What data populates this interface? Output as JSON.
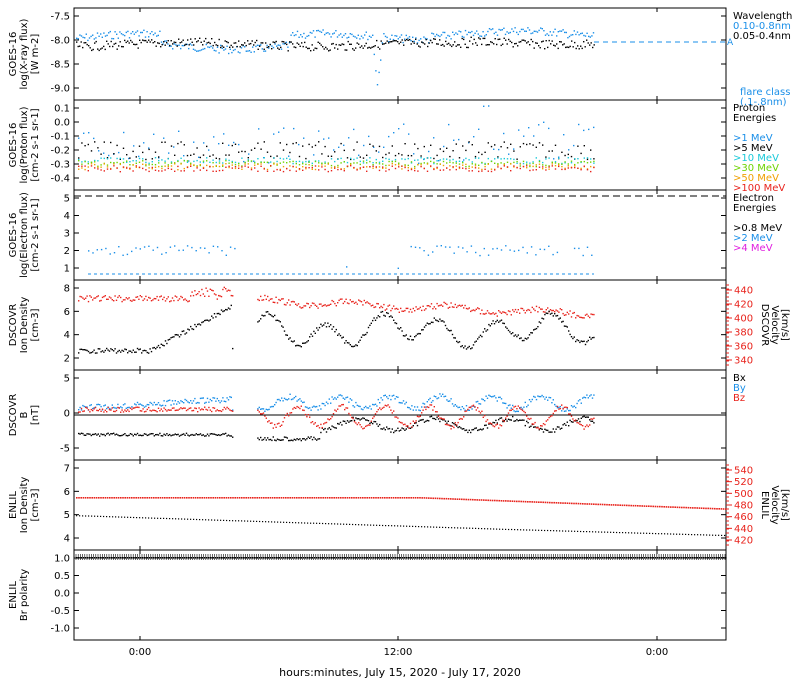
{
  "chart_data": {
    "type": "scatter",
    "xlabel": "hours:minutes, July 15, 2020 - July 17, 2020",
    "x_ticks": [
      "0:00",
      "12:00",
      "0:00"
    ],
    "panels": [
      {
        "id": "xray",
        "ylabel": [
          "GOES-16",
          "log(X-ray flux)",
          "[W m-2]"
        ],
        "y_ticks": [
          "-7.5",
          "-8.0",
          "-8.5",
          "-9.0"
        ],
        "legend_lines": [
          {
            "text": "Wavelength",
            "color": "#000000"
          },
          {
            "text": "0.10-0.8nm",
            "color": "#1a8fe8"
          },
          {
            "text": "0.05-0.4nm",
            "color": "#000000"
          },
          {
            "text": "",
            "color": "#000000"
          },
          {
            "text": "flare class",
            "color": "#1a8fe8"
          },
          {
            "text": "(.1-.8nm)",
            "color": "#1a8fe8"
          }
        ],
        "threshold_label": "A",
        "series": [
          {
            "name": "0.10-0.8nm",
            "color": "#1a8fe8",
            "level": -7.95
          },
          {
            "name": "0.05-0.4nm",
            "color": "#000000",
            "level": -8.1
          }
        ]
      },
      {
        "id": "proton",
        "ylabel": [
          "GOES-16",
          "log(Proton flux)",
          "[cm-2 s-1 sr-1]"
        ],
        "y_ticks": [
          "0.1",
          "0.0",
          "-0.1",
          "-0.2",
          "-0.3",
          "-0.4"
        ],
        "legend_lines": [
          {
            "text": "Proton",
            "color": "#000000"
          },
          {
            "text": "Energies",
            "color": "#000000"
          },
          {
            "text": "",
            "color": "#000000"
          },
          {
            "text": ">1 MeV",
            "color": "#1a8fe8"
          },
          {
            "text": ">5 MeV",
            "color": "#000000"
          },
          {
            "text": ">10 MeV",
            "color": "#19c9d9"
          },
          {
            "text": ">30 MeV",
            "color": "#6fd400"
          },
          {
            "text": ">50 MeV",
            "color": "#f0a000"
          },
          {
            "text": ">100 MeV",
            "color": "#e8231c"
          }
        ]
      },
      {
        "id": "electron",
        "ylabel": [
          "GOES-16",
          "log(Electron flux)",
          "[cm-2 s-1 sr-1]"
        ],
        "y_ticks": [
          "5",
          "4",
          "3",
          "2",
          "1"
        ],
        "legend_lines": [
          {
            "text": "Electron",
            "color": "#000000"
          },
          {
            "text": "Energies",
            "color": "#000000"
          },
          {
            "text": "",
            "color": "#000000"
          },
          {
            "text": ">0.8 MeV",
            "color": "#000000"
          },
          {
            "text": ">2 MeV",
            "color": "#1a8fe8"
          },
          {
            "text": ">4 MeV",
            "color": "#e020e0"
          }
        ]
      },
      {
        "id": "dscovr_density",
        "ylabel": [
          "DSCOVR",
          "Ion Density",
          "[cm-3]"
        ],
        "y_ticks": [
          "8",
          "6",
          "4",
          "2"
        ],
        "right_ylabel": [
          "DSCOVR",
          "Velocity",
          "[km/s]"
        ],
        "right_ticks": [
          "440",
          "420",
          "400",
          "380",
          "360",
          "340"
        ],
        "series": [
          {
            "name": "density",
            "color": "#000000"
          },
          {
            "name": "velocity",
            "color": "#e8231c"
          }
        ]
      },
      {
        "id": "dscovr_b",
        "ylabel": [
          "DSCOVR",
          "B",
          "[nT]"
        ],
        "y_ticks": [
          "5",
          "0",
          "-5"
        ],
        "legend_lines": [
          {
            "text": "Bx",
            "color": "#000000"
          },
          {
            "text": "By",
            "color": "#1a8fe8"
          },
          {
            "text": "Bz",
            "color": "#e8231c"
          }
        ]
      },
      {
        "id": "enlil_density",
        "ylabel": [
          "ENLIL",
          "Ion Density",
          "[cm-3]"
        ],
        "y_ticks": [
          "7",
          "6",
          "5",
          "4"
        ],
        "right_ylabel": [
          "ENLIL",
          "Velocity",
          "[km/s]"
        ],
        "right_ticks": [
          "540",
          "520",
          "500",
          "480",
          "460",
          "440",
          "420"
        ]
      },
      {
        "id": "enlil_polarity",
        "ylabel": [
          "ENLIL",
          "Br polarity"
        ],
        "y_ticks": [
          "1.0",
          "0.5",
          "0.0",
          "-0.5",
          "-1.0"
        ]
      }
    ]
  }
}
